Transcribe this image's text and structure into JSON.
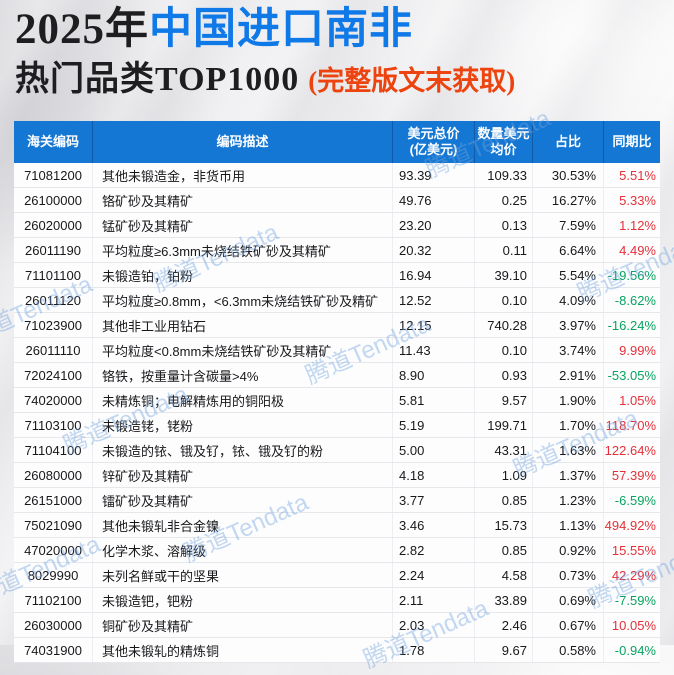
{
  "title": {
    "year": "2025年",
    "subject": "中国进口南非",
    "line2": "热门品类TOP1000",
    "note": "(完整版文末获取)"
  },
  "watermark": {
    "text": "腾道Tendata"
  },
  "colors": {
    "header_bg": "#1477d3",
    "title_blue": "#1079e8",
    "note_orange": "#ed430e",
    "positive_red": "#e53039",
    "negative_green": "#07a45f"
  },
  "table": {
    "headers": [
      {
        "line1": "海关编码"
      },
      {
        "line1": "编码描述"
      },
      {
        "line1": "美元总价",
        "line2": "(亿美元)"
      },
      {
        "line1": "数量美元",
        "line2": "均价"
      },
      {
        "line1": "占比"
      },
      {
        "line1": "同期比"
      }
    ],
    "rows": [
      {
        "code": "71081200",
        "desc": "其他未锻造金，非货币用",
        "total": "93.39",
        "avg": "109.33",
        "share": "30.53%",
        "yoy": "5.51%",
        "trend": "up"
      },
      {
        "code": "26100000",
        "desc": "铬矿砂及其精矿",
        "total": "49.76",
        "avg": "0.25",
        "share": "16.27%",
        "yoy": "5.33%",
        "trend": "up"
      },
      {
        "code": "26020000",
        "desc": "锰矿砂及其精矿",
        "total": "23.20",
        "avg": "0.13",
        "share": "7.59%",
        "yoy": "1.12%",
        "trend": "up"
      },
      {
        "code": "26011190",
        "desc": "平均粒度≥6.3mm未烧结铁矿砂及其精矿",
        "total": "20.32",
        "avg": "0.11",
        "share": "6.64%",
        "yoy": "4.49%",
        "trend": "up"
      },
      {
        "code": "71101100",
        "desc": "未锻造铂，铂粉",
        "total": "16.94",
        "avg": "39.10",
        "share": "5.54%",
        "yoy": "-19.56%",
        "trend": "down"
      },
      {
        "code": "26011120",
        "desc": "平均粒度≥0.8mm，<6.3mm未烧结铁矿砂及精矿",
        "total": "12.52",
        "avg": "0.10",
        "share": "4.09%",
        "yoy": "-8.62%",
        "trend": "down"
      },
      {
        "code": "71023900",
        "desc": "其他非工业用钻石",
        "total": "12.15",
        "avg": "740.28",
        "share": "3.97%",
        "yoy": "-16.24%",
        "trend": "down"
      },
      {
        "code": "26011110",
        "desc": "平均粒度<0.8mm未烧结铁矿砂及其精矿",
        "total": "11.43",
        "avg": "0.10",
        "share": "3.74%",
        "yoy": "9.99%",
        "trend": "up"
      },
      {
        "code": "72024100",
        "desc": "铬铁，按重量计含碳量>4%",
        "total": "8.90",
        "avg": "0.93",
        "share": "2.91%",
        "yoy": "-53.05%",
        "trend": "down"
      },
      {
        "code": "74020000",
        "desc": "未精炼铜；电解精炼用的铜阳极",
        "total": "5.81",
        "avg": "9.57",
        "share": "1.90%",
        "yoy": "1.05%",
        "trend": "up"
      },
      {
        "code": "71103100",
        "desc": "未锻造铑，铑粉",
        "total": "5.19",
        "avg": "199.71",
        "share": "1.70%",
        "yoy": "118.70%",
        "trend": "up"
      },
      {
        "code": "71104100",
        "desc": "未锻造的铱、锇及钌，铱、锇及钌的粉",
        "total": "5.00",
        "avg": "43.31",
        "share": "1.63%",
        "yoy": "122.64%",
        "trend": "up"
      },
      {
        "code": "26080000",
        "desc": "锌矿砂及其精矿",
        "total": "4.18",
        "avg": "1.09",
        "share": "1.37%",
        "yoy": "57.39%",
        "trend": "up"
      },
      {
        "code": "26151000",
        "desc": "镭矿砂及其精矿",
        "total": "3.77",
        "avg": "0.85",
        "share": "1.23%",
        "yoy": "-6.59%",
        "trend": "down"
      },
      {
        "code": "75021090",
        "desc": "其他未锻轧非合金镍",
        "total": "3.46",
        "avg": "15.73",
        "share": "1.13%",
        "yoy": "494.92%",
        "trend": "up"
      },
      {
        "code": "47020000",
        "desc": "化学木浆、溶解级",
        "total": "2.82",
        "avg": "0.85",
        "share": "0.92%",
        "yoy": "15.55%",
        "trend": "up"
      },
      {
        "code": "8029990",
        "desc": "未列名鲜或干的坚果",
        "total": "2.24",
        "avg": "4.58",
        "share": "0.73%",
        "yoy": "42.29%",
        "trend": "up"
      },
      {
        "code": "71102100",
        "desc": "未锻造钯，钯粉",
        "total": "2.11",
        "avg": "33.89",
        "share": "0.69%",
        "yoy": "-7.59%",
        "trend": "down"
      },
      {
        "code": "26030000",
        "desc": "铜矿砂及其精矿",
        "total": "2.03",
        "avg": "2.46",
        "share": "0.67%",
        "yoy": "10.05%",
        "trend": "up"
      },
      {
        "code": "74031900",
        "desc": "其他未锻轧的精炼铜",
        "total": "1.78",
        "avg": "9.67",
        "share": "0.58%",
        "yoy": "-0.94%",
        "trend": "down"
      }
    ]
  },
  "chart_data": {
    "type": "table",
    "title": "2025年中国进口南非热门品类TOP1000 (完整版文末获取)",
    "columns": [
      "海关编码",
      "编码描述",
      "美元总价(亿美元)",
      "数量美元均价",
      "占比",
      "同期比"
    ],
    "hs_codes": [
      "71081200",
      "26100000",
      "26020000",
      "26011190",
      "71101100",
      "26011120",
      "71023900",
      "26011110",
      "72024100",
      "74020000",
      "71103100",
      "71104100",
      "26080000",
      "26151000",
      "75021090",
      "47020000",
      "8029990",
      "71102100",
      "26030000",
      "74031900"
    ],
    "descriptions": [
      "其他未锻造金，非货币用",
      "铬矿砂及其精矿",
      "锰矿砂及其精矿",
      "平均粒度≥6.3mm未烧结铁矿砂及其精矿",
      "未锻造铂，铂粉",
      "平均粒度≥0.8mm，<6.3mm未烧结铁矿砂及精矿",
      "其他非工业用钻石",
      "平均粒度<0.8mm未烧结铁矿砂及其精矿",
      "铬铁，按重量计含碳量>4%",
      "未精炼铜；电解精炼用的铜阳极",
      "未锻造铑，铑粉",
      "未锻造的铱、锇及钌，铱、锇及钌的粉",
      "锌矿砂及其精矿",
      "镭矿砂及其精矿",
      "其他未锻轧非合金镍",
      "化学木浆、溶解级",
      "未列名鲜或干的坚果",
      "未锻造钯，钯粉",
      "铜矿砂及其精矿",
      "其他未锻轧的精炼铜"
    ],
    "series": [
      {
        "name": "美元总价(亿美元)",
        "values": [
          93.39,
          49.76,
          23.2,
          20.32,
          16.94,
          12.52,
          12.15,
          11.43,
          8.9,
          5.81,
          5.19,
          5.0,
          4.18,
          3.77,
          3.46,
          2.82,
          2.24,
          2.11,
          2.03,
          1.78
        ]
      },
      {
        "name": "数量美元均价",
        "values": [
          109.33,
          0.25,
          0.13,
          0.11,
          39.1,
          0.1,
          740.28,
          0.1,
          0.93,
          9.57,
          199.71,
          43.31,
          1.09,
          0.85,
          15.73,
          0.85,
          4.58,
          33.89,
          2.46,
          9.67
        ]
      },
      {
        "name": "占比(%)",
        "values": [
          30.53,
          16.27,
          7.59,
          6.64,
          5.54,
          4.09,
          3.97,
          3.74,
          2.91,
          1.9,
          1.7,
          1.63,
          1.37,
          1.23,
          1.13,
          0.92,
          0.73,
          0.69,
          0.67,
          0.58
        ]
      },
      {
        "name": "同期比(%)",
        "values": [
          5.51,
          5.33,
          1.12,
          4.49,
          -19.56,
          -8.62,
          -16.24,
          9.99,
          -53.05,
          1.05,
          118.7,
          122.64,
          57.39,
          -6.59,
          494.92,
          15.55,
          42.29,
          -7.59,
          10.05,
          -0.94
        ]
      }
    ]
  }
}
